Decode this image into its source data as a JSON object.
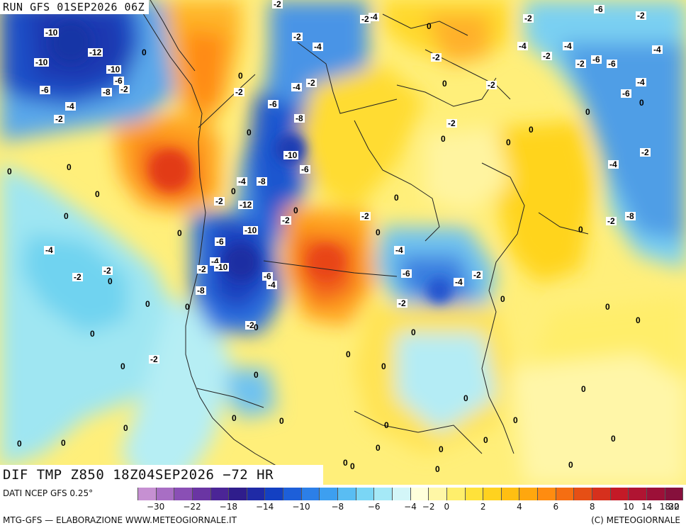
{
  "header": {
    "run_title": "RUN GFS 01SEP2026 06Z"
  },
  "map": {
    "variable_title": "DIF TMP Z850 18Z04SEP2026 −72 HR",
    "contour_labels": [
      "-10",
      "-10",
      "-12",
      "-10",
      "-6",
      "-8",
      "-2",
      "-6",
      "-4",
      "-2",
      "-2",
      "-4",
      "-2",
      "-4",
      "-2",
      "-4",
      "-2",
      "-2",
      "-4",
      "-6",
      "-8",
      "-10",
      "-6",
      "-4",
      "-8",
      "-2",
      "-12",
      "-2",
      "-10",
      "-6",
      "-4",
      "-10",
      "-2",
      "-6",
      "-8",
      "-4",
      "-2",
      "-2",
      "-2",
      "-4",
      "-6",
      "-4",
      "-2",
      "-6",
      "-2",
      "-4",
      "-2",
      "-2",
      "-4",
      "-2",
      "-6",
      "-2",
      "-4",
      "-2",
      "-6",
      "-2",
      "-4",
      "-2",
      "-8",
      "-4",
      "-2",
      "-6",
      "-4",
      "-2",
      "-2",
      "-2",
      "0",
      "0",
      "0",
      "0",
      "0",
      "0",
      "0",
      "0",
      "0",
      "0",
      "0",
      "0",
      "0",
      "0",
      "0",
      "0",
      "0",
      "0",
      "0",
      "0",
      "0",
      "0",
      "0",
      "0",
      "0",
      "0",
      "0",
      "0",
      "0",
      "0",
      "0",
      "0",
      "0",
      "0",
      "0",
      "0",
      "0",
      "0",
      "0",
      "0",
      "0",
      "0",
      "0",
      "0",
      "0",
      "0",
      "0",
      "0",
      "0",
      "0"
    ]
  },
  "legend": {
    "source_text": "DATI NCEP GFS 0.25°",
    "credit_text": "MTG-GFS — ELABORAZIONE WWW.METEOGIORNALE.IT",
    "copyright_text": "(C) METEOGIORNALE",
    "tick_labels": [
      "−30",
      "−22",
      "−18",
      "−14",
      "−10",
      "−8",
      "−6",
      "−4",
      "−2",
      "0",
      "2",
      "4",
      "6",
      "8",
      "10",
      "14",
      "18",
      "22",
      "30"
    ],
    "swatch_colors": [
      "#c690d2",
      "#a86ec4",
      "#8a4fb5",
      "#6a35a3",
      "#4b2596",
      "#2f1d8c",
      "#1f2aa6",
      "#1340c2",
      "#1d5fd9",
      "#2c7fe8",
      "#3d9ff0",
      "#59bdf3",
      "#7ad6f5",
      "#a5e9f7",
      "#d3f6f8",
      "#ffffdb",
      "#fff7a6",
      "#ffef6b",
      "#ffe23a",
      "#ffd21f",
      "#ffbf12",
      "#ffa70e",
      "#ff8c10",
      "#f56e12",
      "#e64f15",
      "#d6301d",
      "#c41a27",
      "#b01432",
      "#9c1038",
      "#86103c"
    ]
  }
}
